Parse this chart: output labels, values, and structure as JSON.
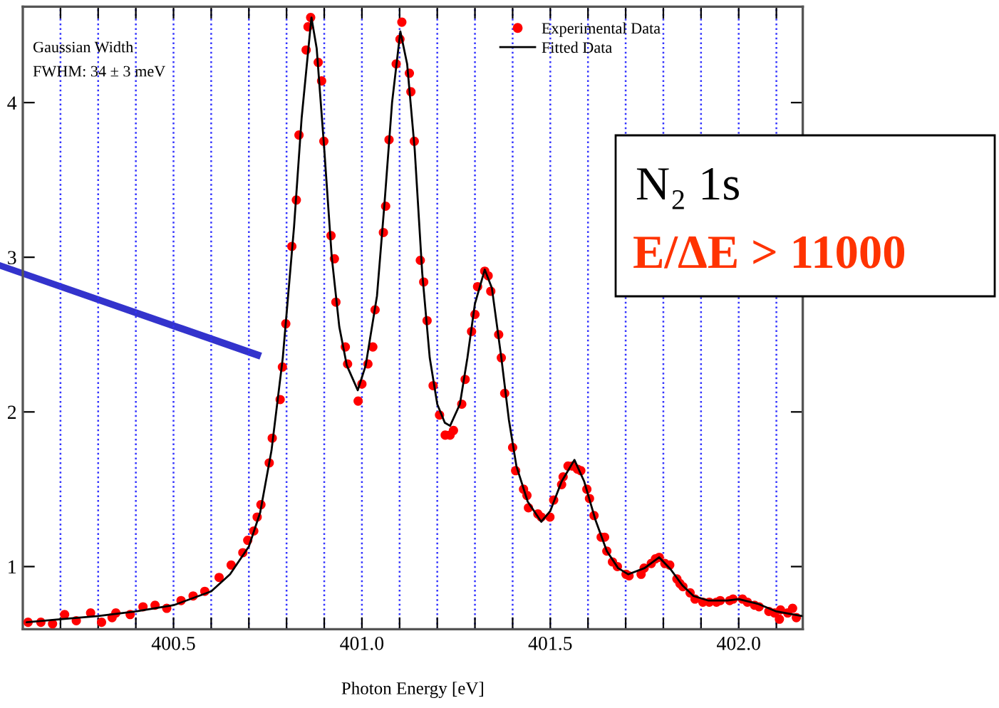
{
  "chart_data": {
    "type": "scatter",
    "xlabel": "Photon Energy [eV]",
    "annotations": [
      "Gaussian Width",
      "FWHM: 34 ± 3 meV",
      "N₂ 1s",
      "E/ΔE > 11000"
    ],
    "xlim": [
      400.1,
      402.17
    ],
    "ylim": [
      0.595,
      4.62
    ],
    "xticks": [
      {
        "value": 400.2,
        "label": null
      },
      {
        "value": 400.3,
        "label": null
      },
      {
        "value": 400.4,
        "label": null
      },
      400.5,
      {
        "value": 400.6,
        "label": null
      },
      {
        "value": 400.7,
        "label": null
      },
      {
        "value": 400.8,
        "label": null
      },
      {
        "value": 400.9,
        "label": null
      },
      {
        "value": 401.0,
        "label": "401.0"
      },
      {
        "value": 401.1,
        "label": null
      },
      {
        "value": 401.2,
        "label": null
      },
      {
        "value": 401.3,
        "label": null
      },
      {
        "value": 401.4,
        "label": null
      },
      401.5,
      {
        "value": 401.6,
        "label": null
      },
      {
        "value": 401.7,
        "label": null
      },
      {
        "value": 401.8,
        "label": null
      },
      {
        "value": 401.9,
        "label": null
      },
      {
        "value": 402.0,
        "label": "402.0"
      },
      {
        "value": 402.1,
        "label": null
      }
    ],
    "yticks": [
      1,
      2,
      3,
      4
    ],
    "grid": "x",
    "legend": "top right",
    "series": [
      {
        "name": "Experimental Data",
        "marker": "circle",
        "color": "#ff0000",
        "x": [
          400.114,
          400.148,
          400.179,
          400.211,
          400.242,
          400.28,
          400.309,
          400.337,
          400.347,
          400.385,
          400.419,
          400.451,
          400.482,
          400.52,
          400.552,
          400.583,
          400.621,
          400.653,
          400.684,
          400.697,
          400.713,
          400.722,
          400.732,
          400.754,
          400.762,
          400.783,
          400.789,
          400.798,
          400.814,
          400.826,
          400.833,
          400.852,
          400.857,
          400.864,
          400.884,
          400.893,
          400.899,
          400.918,
          400.927,
          400.931,
          400.956,
          400.962,
          400.99,
          401.0,
          401.016,
          401.029,
          401.035,
          401.057,
          401.063,
          401.072,
          401.091,
          401.101,
          401.106,
          401.126,
          401.13,
          401.139,
          401.155,
          401.164,
          401.173,
          401.189,
          401.206,
          401.221,
          401.234,
          401.243,
          401.265,
          401.274,
          401.291,
          401.3,
          401.307,
          401.326,
          401.335,
          401.342,
          401.363,
          401.37,
          401.379,
          401.4,
          401.408,
          401.429,
          401.438,
          401.442,
          401.467,
          401.476,
          401.499,
          401.509,
          401.53,
          401.534,
          401.547,
          401.559,
          401.572,
          401.581,
          401.597,
          401.604,
          401.616,
          401.635,
          401.644,
          401.65,
          401.665,
          401.678,
          401.701,
          401.709,
          401.741,
          401.749,
          401.768,
          401.779,
          401.789,
          401.804,
          401.817,
          401.836,
          401.844,
          401.852,
          401.871,
          401.884,
          401.905,
          401.922,
          401.941,
          401.951,
          401.976,
          401.985,
          402.01,
          402.023,
          402.042,
          402.054,
          402.08,
          402.095,
          402.108,
          402.111,
          402.13,
          402.143,
          402.153
        ],
        "values": [
          0.64,
          0.64,
          0.63,
          0.69,
          0.65,
          0.7,
          0.64,
          0.67,
          0.7,
          0.69,
          0.74,
          0.75,
          0.73,
          0.78,
          0.81,
          0.84,
          0.93,
          1.01,
          1.09,
          1.17,
          1.23,
          1.32,
          1.4,
          1.67,
          1.83,
          2.08,
          2.29,
          2.57,
          3.07,
          3.37,
          3.79,
          4.34,
          4.49,
          4.55,
          4.26,
          4.14,
          3.75,
          3.14,
          2.99,
          2.71,
          2.42,
          2.31,
          2.07,
          2.18,
          2.31,
          2.42,
          2.66,
          3.16,
          3.33,
          3.76,
          4.25,
          4.41,
          4.52,
          4.19,
          4.07,
          3.75,
          2.98,
          2.84,
          2.59,
          2.17,
          1.98,
          1.85,
          1.85,
          1.88,
          2.05,
          2.21,
          2.52,
          2.63,
          2.81,
          2.91,
          2.88,
          2.78,
          2.5,
          2.35,
          2.12,
          1.77,
          1.62,
          1.5,
          1.46,
          1.38,
          1.34,
          1.32,
          1.32,
          1.43,
          1.53,
          1.58,
          1.65,
          1.65,
          1.63,
          1.62,
          1.5,
          1.44,
          1.33,
          1.19,
          1.19,
          1.1,
          1.03,
          1.0,
          0.95,
          0.94,
          0.95,
          0.99,
          1.02,
          1.05,
          1.06,
          1.02,
          1.01,
          0.92,
          0.89,
          0.87,
          0.83,
          0.79,
          0.77,
          0.77,
          0.77,
          0.78,
          0.78,
          0.79,
          0.79,
          0.77,
          0.75,
          0.74,
          0.71,
          0.7,
          0.66,
          0.72,
          0.7,
          0.73,
          0.67
        ]
      },
      {
        "name": "Fitted Data",
        "type": "line",
        "marker": "none",
        "line_style": "solid",
        "color": "#000000",
        "x": [
          400.11,
          400.2,
          400.3,
          400.4,
          400.5,
          400.6,
          400.65,
          400.7,
          400.73,
          400.76,
          400.79,
          400.82,
          400.84,
          400.866,
          400.88,
          400.9,
          400.92,
          400.94,
          400.96,
          400.989,
          401.01,
          401.04,
          401.06,
          401.08,
          401.102,
          401.12,
          401.14,
          401.16,
          401.18,
          401.2,
          401.22,
          401.234,
          401.26,
          401.28,
          401.3,
          401.326,
          401.345,
          401.37,
          401.39,
          401.41,
          401.44,
          401.476,
          401.5,
          401.53,
          401.564,
          401.59,
          401.62,
          401.65,
          401.68,
          401.707,
          401.75,
          401.789,
          401.82,
          401.85,
          401.88,
          401.92,
          401.97,
          402.0,
          402.05,
          402.1,
          402.168
        ],
        "values": [
          0.64,
          0.66,
          0.68,
          0.71,
          0.75,
          0.84,
          0.95,
          1.13,
          1.35,
          1.75,
          2.35,
          3.2,
          3.9,
          4.55,
          4.35,
          3.7,
          3.0,
          2.55,
          2.3,
          2.14,
          2.3,
          2.75,
          3.35,
          4.0,
          4.46,
          4.25,
          3.7,
          2.9,
          2.35,
          2.05,
          1.93,
          1.91,
          2.05,
          2.35,
          2.7,
          2.92,
          2.8,
          2.35,
          1.95,
          1.65,
          1.42,
          1.29,
          1.36,
          1.55,
          1.69,
          1.55,
          1.3,
          1.1,
          0.99,
          0.95,
          0.99,
          1.06,
          0.98,
          0.88,
          0.81,
          0.78,
          0.78,
          0.79,
          0.76,
          0.71,
          0.68
        ]
      }
    ]
  }
}
